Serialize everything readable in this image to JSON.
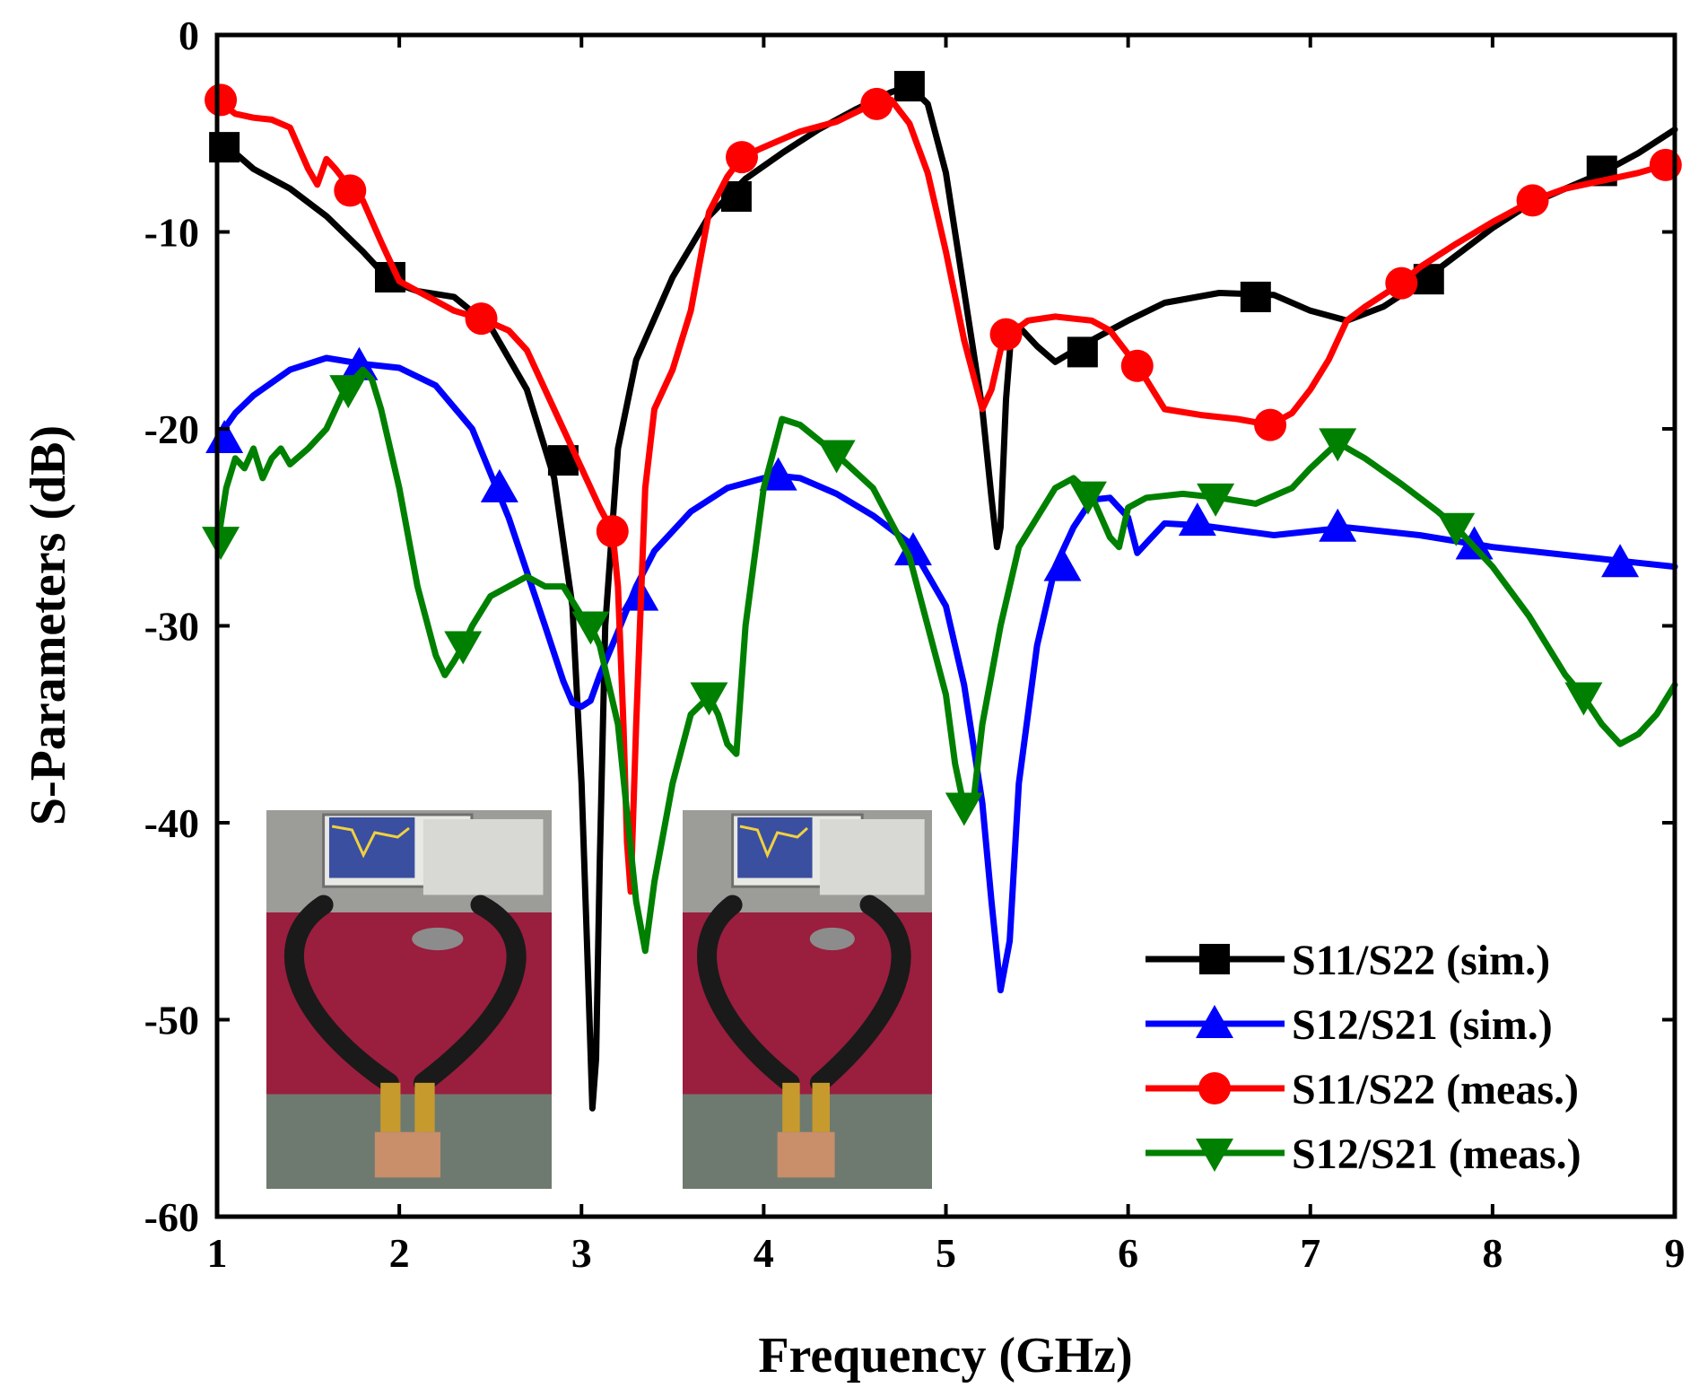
{
  "chart_data": {
    "type": "line",
    "xlabel": "Frequency (GHz)",
    "ylabel": "S-Parameters (dB)",
    "xlim": [
      1,
      9
    ],
    "ylim": [
      -60,
      0
    ],
    "xticks": [
      1,
      2,
      3,
      4,
      5,
      6,
      7,
      8,
      9
    ],
    "yticks": [
      0,
      -10,
      -20,
      -30,
      -40,
      -50,
      -60
    ],
    "legend_position": "bottom-right",
    "inset": "two photographs of the measurement setup (vector network analyzer with cables and antenna prototypes)",
    "series": [
      {
        "name": "S11/S22 (sim.)",
        "color": "#000000",
        "marker": "square",
        "markers_at": [
          [
            1.04,
            -5.7
          ],
          [
            1.95,
            -12.3
          ],
          [
            2.9,
            -21.6
          ],
          [
            3.85,
            -8.2
          ],
          [
            4.8,
            -2.6
          ],
          [
            5.75,
            -16.1
          ],
          [
            6.7,
            -13.3
          ],
          [
            7.65,
            -12.4
          ],
          [
            8.6,
            -6.9
          ]
        ],
        "x": [
          1.0,
          1.1,
          1.2,
          1.4,
          1.6,
          1.8,
          1.95,
          2.1,
          2.3,
          2.5,
          2.7,
          2.85,
          2.95,
          3.0,
          3.03,
          3.06,
          3.08,
          3.1,
          3.13,
          3.2,
          3.3,
          3.5,
          3.7,
          3.9,
          4.1,
          4.3,
          4.5,
          4.7,
          4.8,
          4.9,
          5.0,
          5.1,
          5.2,
          5.25,
          5.28,
          5.3,
          5.33,
          5.36,
          5.4,
          5.5,
          5.6,
          5.8,
          6.0,
          6.2,
          6.5,
          6.8,
          7.0,
          7.2,
          7.4,
          7.6,
          7.8,
          8.0,
          8.2,
          8.4,
          8.6,
          8.8,
          9.0
        ],
        "y": [
          -5.5,
          -6.0,
          -6.8,
          -7.8,
          -9.2,
          -11.0,
          -12.5,
          -13.0,
          -13.3,
          -14.8,
          -18.0,
          -22.5,
          -29.0,
          -38.0,
          -46.0,
          -54.5,
          -52.0,
          -42.0,
          -30.0,
          -21.0,
          -16.5,
          -12.3,
          -9.2,
          -7.3,
          -6.0,
          -4.8,
          -3.8,
          -2.9,
          -2.6,
          -3.5,
          -7.0,
          -13.0,
          -19.0,
          -23.5,
          -26.0,
          -25.0,
          -18.5,
          -15.0,
          -14.8,
          -15.8,
          -16.6,
          -15.5,
          -14.5,
          -13.6,
          -13.1,
          -13.2,
          -14.0,
          -14.5,
          -13.8,
          -12.6,
          -11.2,
          -9.8,
          -8.6,
          -7.8,
          -7.0,
          -6.0,
          -4.8
        ]
      },
      {
        "name": "S12/S21 (sim.)",
        "color": "#0000ff",
        "marker": "triangle-up",
        "markers_at": [
          [
            1.04,
            -20.5
          ],
          [
            1.78,
            -16.8
          ],
          [
            2.55,
            -23.0
          ],
          [
            3.32,
            -28.5
          ],
          [
            4.08,
            -22.4
          ],
          [
            4.82,
            -26.2
          ],
          [
            5.64,
            -27.0
          ],
          [
            6.38,
            -24.7
          ],
          [
            7.15,
            -25.0
          ],
          [
            7.9,
            -25.9
          ],
          [
            8.7,
            -26.8
          ]
        ],
        "x": [
          1.0,
          1.1,
          1.2,
          1.4,
          1.6,
          1.8,
          2.0,
          2.2,
          2.4,
          2.6,
          2.8,
          2.9,
          2.95,
          3.0,
          3.05,
          3.1,
          3.2,
          3.3,
          3.4,
          3.6,
          3.8,
          4.0,
          4.1,
          4.2,
          4.4,
          4.6,
          4.8,
          5.0,
          5.1,
          5.2,
          5.25,
          5.3,
          5.35,
          5.4,
          5.5,
          5.6,
          5.7,
          5.8,
          5.9,
          6.0,
          6.05,
          6.1,
          6.2,
          6.4,
          6.8,
          7.2,
          7.6,
          8.0,
          8.4,
          8.8,
          9.0
        ],
        "y": [
          -20.5,
          -19.2,
          -18.3,
          -17.0,
          -16.4,
          -16.7,
          -16.9,
          -17.8,
          -20.0,
          -24.5,
          -30.0,
          -32.8,
          -33.9,
          -34.1,
          -33.8,
          -32.5,
          -30.3,
          -28.0,
          -26.2,
          -24.2,
          -23.0,
          -22.5,
          -22.4,
          -22.5,
          -23.3,
          -24.4,
          -25.8,
          -29.0,
          -33.0,
          -39.0,
          -44.0,
          -48.5,
          -46.0,
          -38.0,
          -31.0,
          -27.0,
          -25.0,
          -23.6,
          -23.5,
          -24.5,
          -26.3,
          -25.8,
          -24.8,
          -24.9,
          -25.4,
          -25.0,
          -25.4,
          -26.0,
          -26.4,
          -26.8,
          -27.0
        ]
      },
      {
        "name": "S11/S22 (meas.)",
        "color": "#ff0000",
        "marker": "circle",
        "markers_at": [
          [
            1.02,
            -3.3
          ],
          [
            1.73,
            -7.9
          ],
          [
            2.45,
            -14.4
          ],
          [
            3.17,
            -25.2
          ],
          [
            3.88,
            -6.2
          ],
          [
            4.62,
            -3.5
          ],
          [
            5.33,
            -15.2
          ],
          [
            6.05,
            -16.8
          ],
          [
            6.78,
            -19.8
          ],
          [
            7.5,
            -12.6
          ],
          [
            8.22,
            -8.4
          ],
          [
            8.95,
            -6.6
          ]
        ],
        "x": [
          1.0,
          1.1,
          1.2,
          1.3,
          1.4,
          1.5,
          1.55,
          1.6,
          1.65,
          1.7,
          1.75,
          1.8,
          1.9,
          2.0,
          2.1,
          2.2,
          2.3,
          2.45,
          2.6,
          2.7,
          2.8,
          2.9,
          3.0,
          3.1,
          3.17,
          3.2,
          3.23,
          3.25,
          3.27,
          3.3,
          3.35,
          3.4,
          3.5,
          3.6,
          3.7,
          3.8,
          3.88,
          4.0,
          4.2,
          4.4,
          4.6,
          4.7,
          4.8,
          4.9,
          5.0,
          5.1,
          5.2,
          5.25,
          5.3,
          5.35,
          5.45,
          5.6,
          5.8,
          5.9,
          6.0,
          6.05,
          6.1,
          6.2,
          6.4,
          6.6,
          6.78,
          6.9,
          7.0,
          7.1,
          7.2,
          7.3,
          7.4,
          7.5,
          7.6,
          7.8,
          8.0,
          8.22,
          8.4,
          8.6,
          8.8,
          8.95,
          9.0
        ],
        "y": [
          -3.3,
          -4.0,
          -4.2,
          -4.3,
          -4.7,
          -6.8,
          -7.6,
          -6.3,
          -6.8,
          -7.4,
          -7.8,
          -8.4,
          -10.5,
          -12.5,
          -13.0,
          -13.5,
          -14.0,
          -14.4,
          -15.0,
          -16.0,
          -18.0,
          -20.0,
          -22.0,
          -24.0,
          -25.2,
          -28.0,
          -35.0,
          -41.0,
          -43.5,
          -35.0,
          -23.0,
          -19.0,
          -17.0,
          -14.0,
          -9.0,
          -7.2,
          -6.2,
          -5.7,
          -4.9,
          -4.4,
          -3.5,
          -3.3,
          -4.5,
          -7.0,
          -11.0,
          -15.5,
          -19.0,
          -18.0,
          -16.0,
          -15.2,
          -14.5,
          -14.3,
          -14.5,
          -15.0,
          -16.2,
          -16.8,
          -17.5,
          -19.0,
          -19.3,
          -19.5,
          -19.8,
          -19.2,
          -18.0,
          -16.5,
          -14.5,
          -13.8,
          -13.2,
          -12.6,
          -11.8,
          -10.6,
          -9.5,
          -8.4,
          -7.8,
          -7.4,
          -7.0,
          -6.6,
          -6.5
        ]
      },
      {
        "name": "S12/S21 (meas.)",
        "color": "#008000",
        "marker": "triangle-down",
        "markers_at": [
          [
            1.02,
            -25.7
          ],
          [
            1.72,
            -18.0
          ],
          [
            2.35,
            -31.0
          ],
          [
            3.05,
            -30.0
          ],
          [
            3.7,
            -33.6
          ],
          [
            4.4,
            -21.3
          ],
          [
            5.1,
            -39.2
          ],
          [
            5.78,
            -23.4
          ],
          [
            6.48,
            -23.5
          ],
          [
            7.15,
            -20.7
          ],
          [
            7.8,
            -25.0
          ],
          [
            8.5,
            -33.6
          ]
        ],
        "x": [
          1.0,
          1.05,
          1.1,
          1.15,
          1.2,
          1.25,
          1.3,
          1.35,
          1.4,
          1.5,
          1.6,
          1.7,
          1.8,
          1.85,
          1.9,
          2.0,
          2.1,
          2.2,
          2.25,
          2.3,
          2.35,
          2.4,
          2.5,
          2.6,
          2.7,
          2.8,
          2.9,
          3.0,
          3.05,
          3.1,
          3.2,
          3.25,
          3.3,
          3.35,
          3.4,
          3.5,
          3.6,
          3.7,
          3.75,
          3.8,
          3.85,
          3.9,
          4.0,
          4.1,
          4.2,
          4.4,
          4.6,
          4.8,
          5.0,
          5.05,
          5.1,
          5.15,
          5.2,
          5.3,
          5.4,
          5.5,
          5.6,
          5.7,
          5.8,
          5.9,
          5.95,
          6.0,
          6.1,
          6.3,
          6.5,
          6.7,
          6.9,
          7.0,
          7.15,
          7.3,
          7.5,
          7.7,
          7.8,
          8.0,
          8.2,
          8.4,
          8.5,
          8.6,
          8.7,
          8.8,
          8.9,
          9.0
        ],
        "y": [
          -26.0,
          -23.0,
          -21.5,
          -22.0,
          -21.0,
          -22.5,
          -21.5,
          -21.0,
          -21.8,
          -21.0,
          -20.0,
          -18.0,
          -17.0,
          -17.5,
          -19.0,
          -23.0,
          -28.0,
          -31.5,
          -32.5,
          -31.8,
          -31.0,
          -30.0,
          -28.5,
          -28.0,
          -27.5,
          -28.0,
          -28.0,
          -29.5,
          -30.0,
          -31.0,
          -35.0,
          -39.5,
          -44.0,
          -46.5,
          -43.0,
          -38.0,
          -34.5,
          -33.6,
          -34.5,
          -36.0,
          -36.5,
          -30.0,
          -23.0,
          -19.5,
          -19.8,
          -21.3,
          -23.0,
          -26.5,
          -33.5,
          -37.0,
          -39.2,
          -39.0,
          -35.0,
          -30.0,
          -26.0,
          -24.5,
          -23.0,
          -22.5,
          -23.4,
          -25.5,
          -26.0,
          -24.0,
          -23.5,
          -23.3,
          -23.5,
          -23.8,
          -23.0,
          -22.0,
          -20.7,
          -21.5,
          -22.8,
          -24.2,
          -25.0,
          -27.0,
          -29.5,
          -32.5,
          -33.6,
          -35.0,
          -36.0,
          -35.5,
          -34.5,
          -33.0
        ]
      }
    ]
  }
}
